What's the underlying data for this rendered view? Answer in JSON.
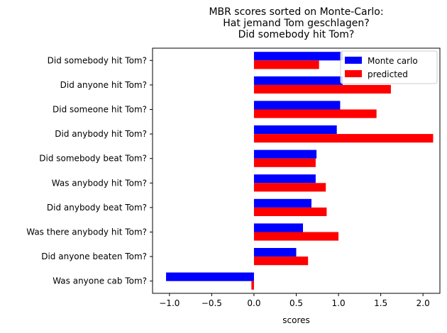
{
  "chart_data": {
    "type": "bar",
    "orientation": "horizontal",
    "title": [
      "MBR scores sorted on Monte-Carlo:",
      "Hat jemand Tom geschlagen?",
      "Did somebody hit Tom?"
    ],
    "xlabel": "scores",
    "ylabel": "",
    "xlim": [
      -1.2,
      2.2
    ],
    "xticks": [
      -1.0,
      -0.5,
      0.0,
      0.5,
      1.0,
      1.5,
      2.0
    ],
    "xtick_labels": [
      "−1.0",
      "−0.5",
      "0.0",
      "0.5",
      "1.0",
      "1.5",
      "2.0"
    ],
    "grid": false,
    "legend_position": "top-right",
    "categories": [
      "Did somebody hit Tom?",
      "Did anyone hit Tom?",
      "Did someone hit Tom?",
      "Did anybody hit Tom?",
      "Did somebody beat Tom?",
      "Was anybody hit Tom?",
      "Did anybody beat Tom?",
      "Was there anybody hit Tom?",
      "Did anyone beaten Tom?",
      "Was anyone cab Tom?"
    ],
    "series": [
      {
        "name": "Monte carlo",
        "color": "#0000ff",
        "values": [
          1.05,
          1.05,
          1.02,
          0.98,
          0.74,
          0.73,
          0.68,
          0.58,
          0.5,
          -1.04
        ]
      },
      {
        "name": "predicted",
        "color": "#ff0000",
        "values": [
          0.77,
          1.62,
          1.45,
          2.12,
          0.73,
          0.85,
          0.86,
          1.0,
          0.64,
          -0.03
        ]
      }
    ]
  }
}
